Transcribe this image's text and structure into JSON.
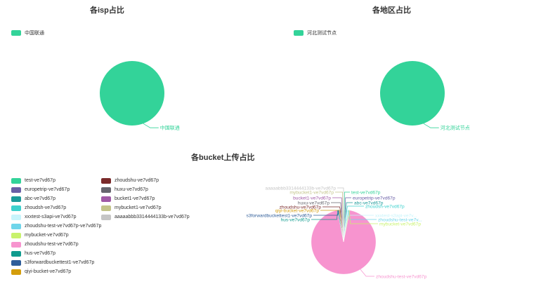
{
  "chart_data": [
    {
      "type": "pie",
      "title": "各isp占比",
      "legend_position": "top-left",
      "slices": [
        {
          "label": "中国联通",
          "value": 100,
          "color": "#33d399"
        }
      ]
    },
    {
      "type": "pie",
      "title": "各地区占比",
      "legend_position": "top-left",
      "slices": [
        {
          "label": "河北测试节点",
          "value": 100,
          "color": "#33d399"
        }
      ]
    },
    {
      "type": "pie",
      "title": "各bucket上传占比",
      "legend_position": "left",
      "slices": [
        {
          "label": "test-ve7vd67p",
          "value": 0.4,
          "color": "#33d399"
        },
        {
          "label": "europetrip-ve7vd67p",
          "value": 0.4,
          "color": "#6a5fa6"
        },
        {
          "label": "abc-ve7vd67p",
          "value": 0.4,
          "color": "#1b9a99"
        },
        {
          "label": "zhoudsh-ve7vd67p",
          "value": 0.4,
          "color": "#3dd1cd"
        },
        {
          "label": "xxxtest-s3api-ve7vd67p",
          "value": 0.4,
          "color": "#c7f4fb"
        },
        {
          "label": "zhoudshu-test-ve7vd67p-ve7vd67p",
          "value": 0.4,
          "color": "#6fd5ea"
        },
        {
          "label": "mybucket-ve7vd67p",
          "value": 0.4,
          "color": "#c8f26d"
        },
        {
          "label": "zhoudshu-test-ve7vd67p",
          "value": 92.0,
          "color": "#f794cf"
        },
        {
          "label": "hus-ve7vd67p",
          "value": 0.4,
          "color": "#0f9b8e"
        },
        {
          "label": "s3forwardbuckettest1-ve7vd67p",
          "value": 0.4,
          "color": "#2f5d99"
        },
        {
          "label": "qiyi-bucket-ve7vd67p",
          "value": 0.4,
          "color": "#d49d0c"
        },
        {
          "label": "zhoudshu-ve7vd67p",
          "value": 0.4,
          "color": "#7a2a2a"
        },
        {
          "label": "huxu-ve7vd67p",
          "value": 0.4,
          "color": "#66666e"
        },
        {
          "label": "bucket1-ve7vd67p",
          "value": 0.4,
          "color": "#a05aa6"
        },
        {
          "label": "mybucket1-ve7vd67p",
          "value": 0.4,
          "color": "#c3c48a"
        },
        {
          "label": "aaaaabbb3314444133b-ve7vd67p",
          "value": 0.4,
          "color": "#c5c5c5"
        }
      ]
    }
  ]
}
